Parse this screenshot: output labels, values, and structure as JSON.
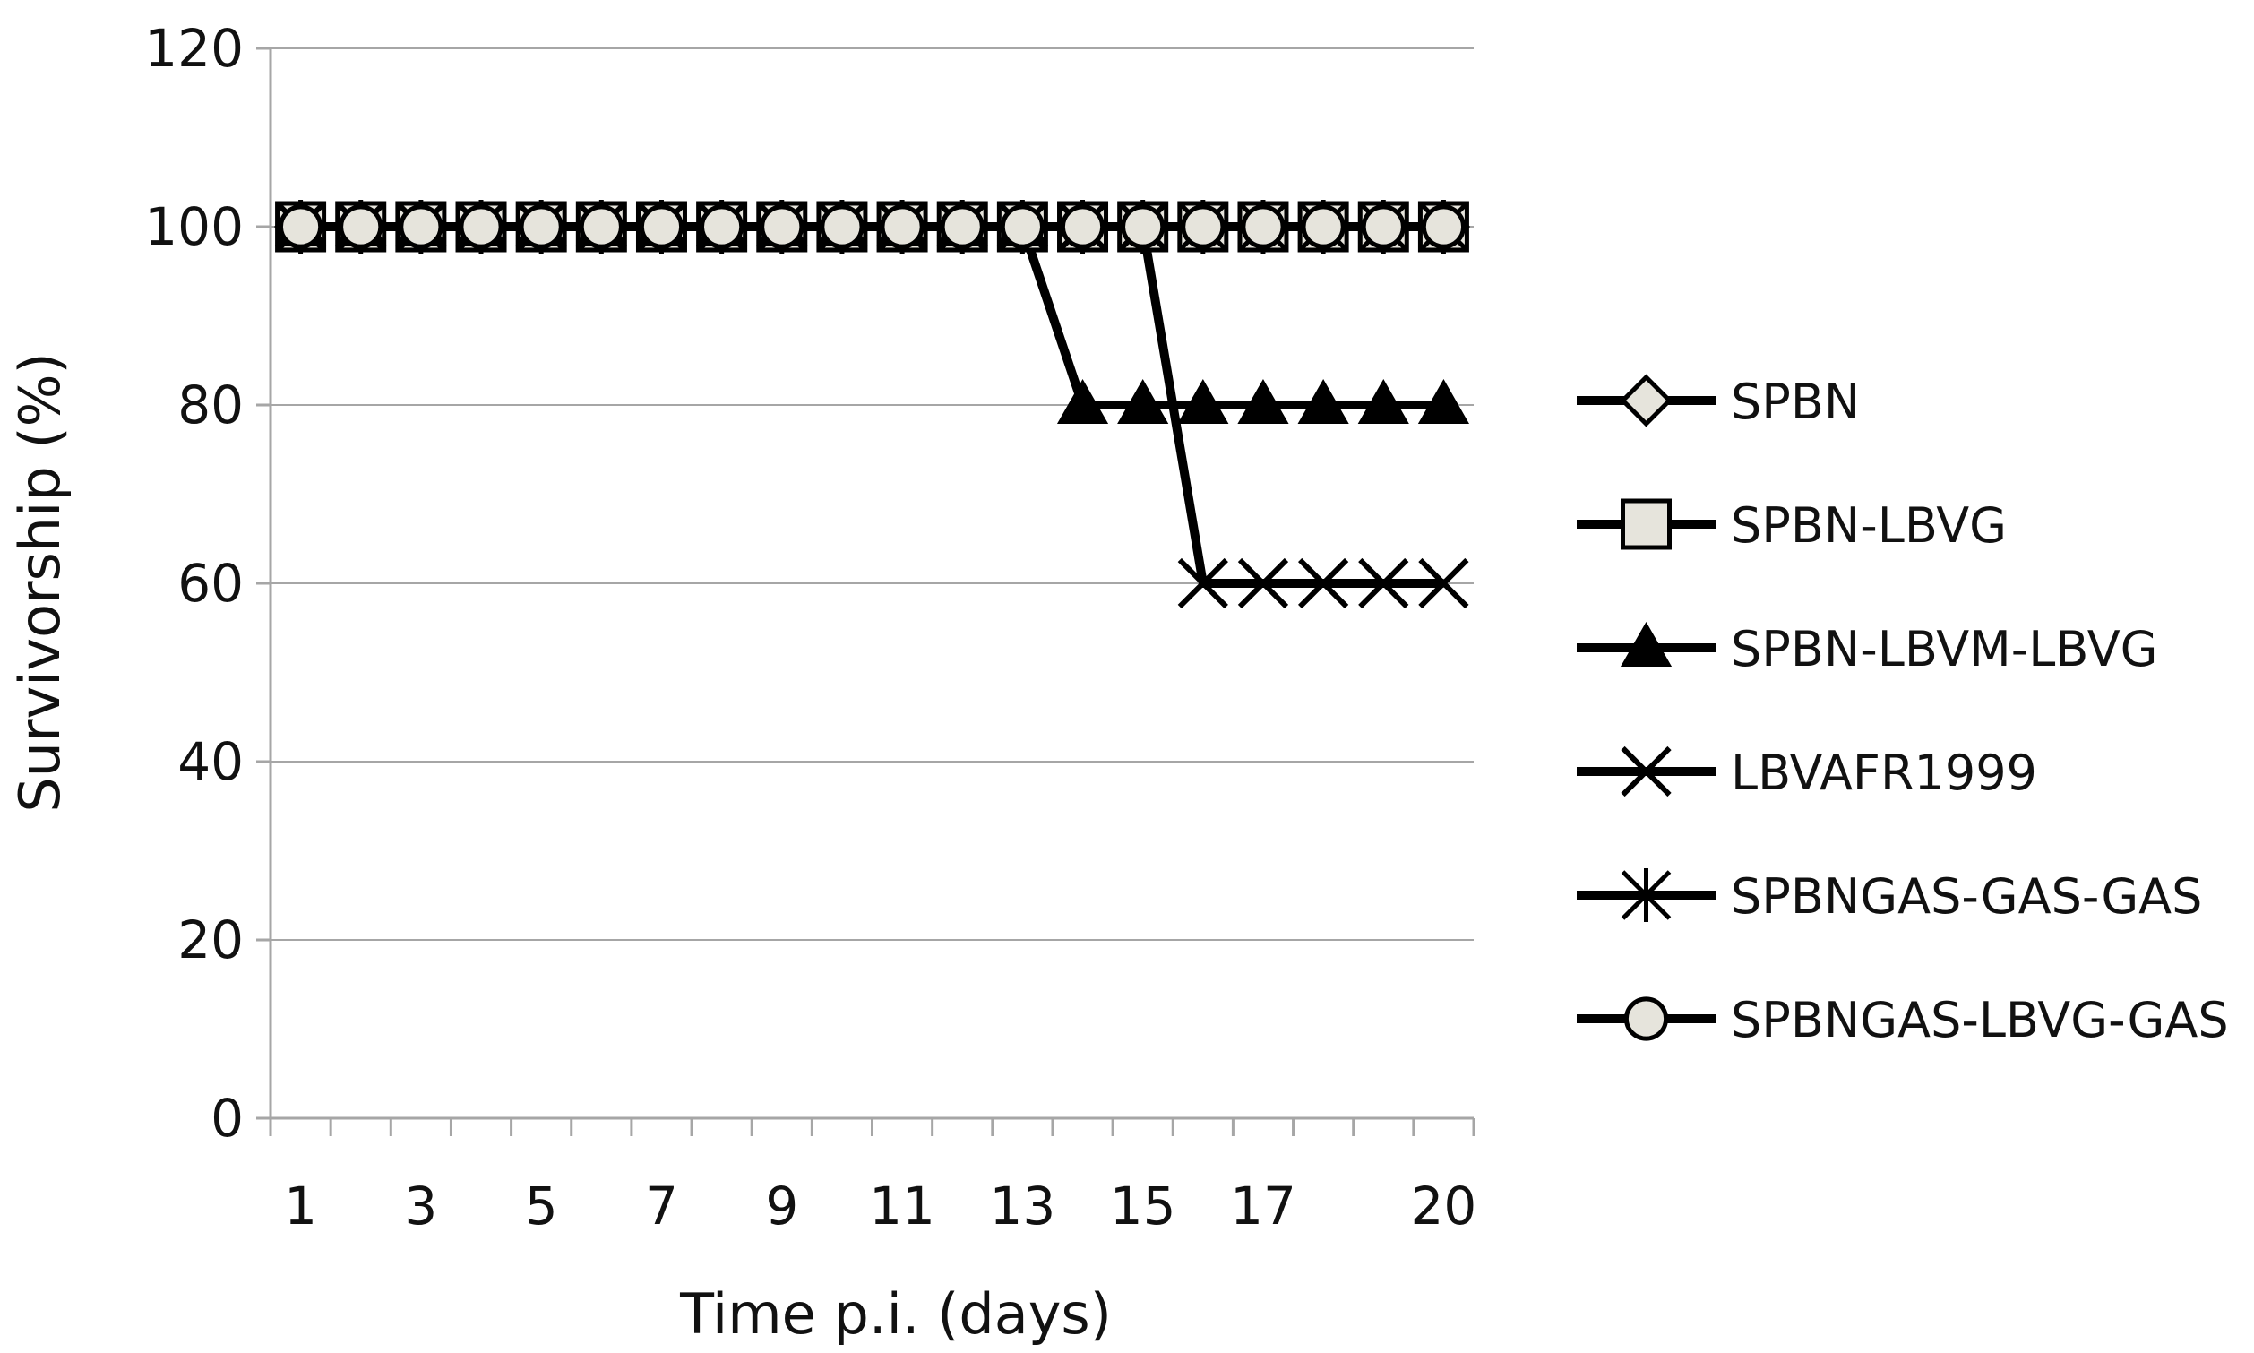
{
  "chart_data": {
    "type": "line",
    "xlabel": "Time p.i. (days)",
    "ylabel": "Survivorship (%)",
    "ylim": [
      0,
      120
    ],
    "y_ticks": [
      0,
      20,
      40,
      60,
      80,
      100,
      120
    ],
    "grid": "horizontal",
    "legend_position": "right",
    "x_tick_labels": [
      "1",
      "3",
      "5",
      "7",
      "9",
      "11",
      "13",
      "15",
      "17",
      "20"
    ],
    "categories": [
      "1",
      "2",
      "3",
      "4",
      "5",
      "6",
      "7",
      "8",
      "9",
      "10",
      "11",
      "12",
      "13",
      "14",
      "15",
      "16",
      "17",
      "18",
      "19",
      "20"
    ],
    "series": [
      {
        "name": "SPBN",
        "marker": "diamond",
        "values": [
          100,
          100,
          100,
          100,
          100,
          100,
          100,
          100,
          100,
          100,
          100,
          100,
          100,
          100,
          100,
          100,
          100,
          100,
          100,
          100
        ]
      },
      {
        "name": "SPBN-LBVG",
        "marker": "square",
        "values": [
          100,
          100,
          100,
          100,
          100,
          100,
          100,
          100,
          100,
          100,
          100,
          100,
          100,
          100,
          100,
          100,
          100,
          100,
          100,
          100
        ]
      },
      {
        "name": "SPBN-LBVM-LBVG",
        "marker": "triangle",
        "values": [
          100,
          100,
          100,
          100,
          100,
          100,
          100,
          100,
          100,
          100,
          100,
          100,
          100,
          80,
          80,
          80,
          80,
          80,
          80,
          80
        ]
      },
      {
        "name": "LBVAFR1999",
        "marker": "x",
        "values": [
          100,
          100,
          100,
          100,
          100,
          100,
          100,
          100,
          100,
          100,
          100,
          100,
          100,
          100,
          100,
          60,
          60,
          60,
          60,
          60
        ]
      },
      {
        "name": "SPBNGAS-GAS-GAS",
        "marker": "star",
        "values": [
          100,
          100,
          100,
          100,
          100,
          100,
          100,
          100,
          100,
          100,
          100,
          100,
          100,
          100,
          100,
          100,
          100,
          100,
          100,
          100
        ]
      },
      {
        "name": "SPBNGAS-LBVG-GAS",
        "marker": "circle",
        "values": [
          100,
          100,
          100,
          100,
          100,
          100,
          100,
          100,
          100,
          100,
          100,
          100,
          100,
          100,
          100,
          100,
          100,
          100,
          100,
          100
        ]
      }
    ],
    "colors": {
      "line": "#000000",
      "marker_fill": "#e6e4dc",
      "grid": "#a6a6a6"
    }
  }
}
